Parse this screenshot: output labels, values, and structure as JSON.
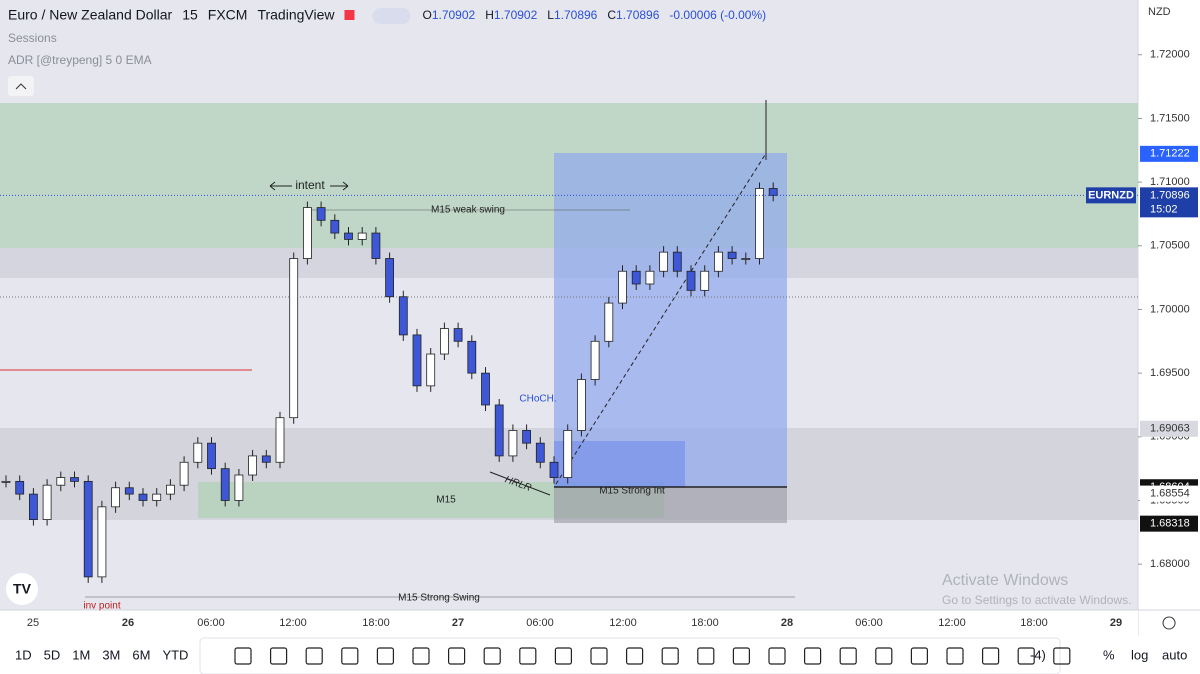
{
  "header": {
    "symbol": "Euro / New Zealand Dollar",
    "interval": "15",
    "exchange": "FXCM",
    "source": "TradingView",
    "ohlc": [
      {
        "key": "O",
        "value": "1.70902"
      },
      {
        "key": "H",
        "value": "1.70902"
      },
      {
        "key": "L",
        "value": "1.70896"
      },
      {
        "key": "C",
        "value": "1.70896"
      }
    ],
    "change": "-0.00006 (-0.00%)",
    "indicators": [
      "Sessions",
      "ADR [@treypeng] 5 0 EMA"
    ],
    "currency": "NZD"
  },
  "chart_data": {
    "type": "candlestick",
    "up_color": "#ffffff",
    "down_color": "#3d57d6",
    "closes": [
      1.6865,
      1.6855,
      1.6835,
      1.6862,
      1.6868,
      1.6865,
      1.679,
      1.6845,
      1.686,
      1.6855,
      1.685,
      1.6855,
      1.6862,
      1.688,
      1.6895,
      1.6875,
      1.685,
      1.687,
      1.6885,
      1.688,
      1.6915,
      1.704,
      1.708,
      1.707,
      1.706,
      1.7055,
      1.706,
      1.704,
      1.701,
      1.698,
      1.694,
      1.6965,
      1.6985,
      1.6975,
      1.695,
      1.6925,
      1.6885,
      1.6905,
      1.6895,
      1.688,
      1.6868,
      1.6905,
      1.6945,
      1.6975,
      1.7005,
      1.703,
      1.702,
      1.703,
      1.7045,
      1.703,
      1.7015,
      1.703,
      1.7045,
      1.704,
      1.704,
      1.7095,
      1.70896
    ],
    "ylim": [
      1.6764,
      1.7243
    ],
    "yticks": [
      {
        "value": 1.72,
        "label": "1.72000"
      },
      {
        "value": 1.715,
        "label": "1.71500"
      },
      {
        "value": 1.71,
        "label": "1.71000"
      },
      {
        "value": 1.705,
        "label": "1.70500"
      },
      {
        "value": 1.7,
        "label": "1.70000"
      },
      {
        "value": 1.695,
        "label": "1.69500"
      },
      {
        "value": 1.69,
        "label": "1.69000"
      },
      {
        "value": 1.685,
        "label": "1.68500"
      },
      {
        "value": 1.68,
        "label": "1.68000"
      }
    ],
    "price_markers": [
      {
        "value": 1.71222,
        "label": "1.71222"
      },
      {
        "value": 1.69063,
        "label": "1.69063"
      },
      {
        "value": 1.68604,
        "label": "1.68604"
      },
      {
        "value": 1.68554,
        "label": "1.68554"
      },
      {
        "value": 1.68318,
        "label": "1.68318"
      }
    ],
    "last_price": {
      "symbol": "EURNZD",
      "value": 1.70896,
      "label": "1.70896",
      "countdown": "15:02"
    },
    "x_labels": [
      "25",
      "26",
      "06:00",
      "12:00",
      "18:00",
      "27",
      "06:00",
      "12:00",
      "18:00",
      "28",
      "06:00",
      "12:00",
      "18:00",
      "29"
    ],
    "annotations": [
      "intent",
      "M15 weak swing",
      "CHoCH.",
      "HRLR",
      "M15",
      "M15 Strong Int",
      "M15 Strong Swing",
      "inv point"
    ]
  },
  "watermark": {
    "title": "Activate Windows",
    "text": "Go to Settings to activate Windows."
  },
  "toolbar": {
    "ranges": [
      "1D",
      "5D",
      "1M",
      "3M",
      "6M",
      "YTD"
    ],
    "right": [
      "-4)",
      "%",
      "log",
      "auto"
    ]
  }
}
